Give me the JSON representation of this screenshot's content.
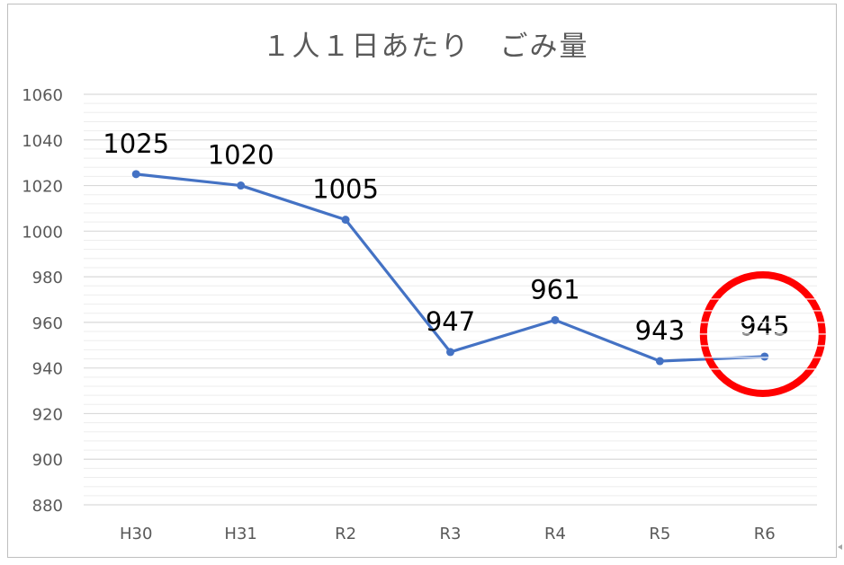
{
  "chart_data": {
    "type": "line",
    "title": "１人１日あたり　ごみ量",
    "categories": [
      "H30",
      "H31",
      "R2",
      "R3",
      "R4",
      "R5",
      "R6"
    ],
    "values": [
      1025,
      1020,
      1005,
      947,
      961,
      943,
      945
    ],
    "data_labels": [
      "1025",
      "1020",
      "1005",
      "947",
      "961",
      "943",
      "945"
    ],
    "ylim": [
      880,
      1060
    ],
    "yticks": [
      "880",
      "900",
      "920",
      "940",
      "960",
      "980",
      "1000",
      "1020",
      "1040",
      "1060"
    ],
    "grid": true,
    "line_color": "#4472c4",
    "highlight": {
      "category": "R6",
      "shape": "circle",
      "color": "#ff0000"
    }
  }
}
